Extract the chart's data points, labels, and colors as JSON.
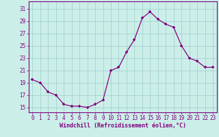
{
  "x": [
    0,
    1,
    2,
    3,
    4,
    5,
    6,
    7,
    8,
    9,
    10,
    11,
    12,
    13,
    14,
    15,
    16,
    17,
    18,
    19,
    20,
    21,
    22,
    23
  ],
  "y": [
    19.5,
    19.0,
    17.5,
    17.0,
    15.5,
    15.2,
    15.2,
    15.0,
    15.5,
    16.2,
    21.0,
    21.5,
    24.0,
    26.0,
    29.5,
    30.5,
    29.3,
    28.5,
    28.0,
    25.0,
    23.0,
    22.5,
    21.5,
    21.5
  ],
  "line_color": "#800080",
  "marker": "+",
  "bg_color": "#cceee8",
  "grid_color": "#99cccc",
  "xlabel": "Windchill (Refroidissement éolien,°C)",
  "xlabel_color": "#800080",
  "ylabel_ticks": [
    15,
    17,
    19,
    21,
    23,
    25,
    27,
    29,
    31
  ],
  "xlim": [
    -0.5,
    23.5
  ],
  "ylim": [
    14.2,
    32.2
  ],
  "tick_color": "#800080",
  "axis_color": "#800080",
  "tick_fontsize": 5.5,
  "xlabel_fontsize": 6.0
}
